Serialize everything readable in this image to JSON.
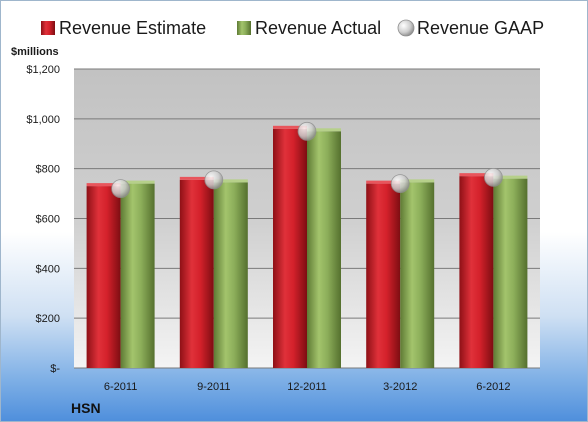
{
  "company": "HSN",
  "colors": {
    "estimate": "#d4212b",
    "actual": "#8cae5a",
    "gaap": "#d0d0d0"
  },
  "chart_data": {
    "type": "bar",
    "title": "",
    "xlabel": "",
    "ylabel": "$millions",
    "categories": [
      "6-2011",
      "9-2011",
      "12-2011",
      "3-2012",
      "6-2012"
    ],
    "series": [
      {
        "name": "Revenue Estimate",
        "kind": "bar",
        "values": [
          730,
          755,
          960,
          740,
          770
        ]
      },
      {
        "name": "Revenue Actual",
        "kind": "bar",
        "values": [
          740,
          745,
          950,
          745,
          760
        ]
      },
      {
        "name": "Revenue GAAP",
        "kind": "marker",
        "values": [
          720,
          755,
          950,
          740,
          765
        ]
      }
    ],
    "ylim": [
      0,
      1200
    ],
    "yticks": [
      0,
      200,
      400,
      600,
      800,
      1000,
      1200
    ],
    "ytick_labels": [
      "$-",
      "$200",
      "$400",
      "$600",
      "$800",
      "$1,000",
      "$1,200"
    ],
    "grid": true,
    "legend_position": "top"
  }
}
